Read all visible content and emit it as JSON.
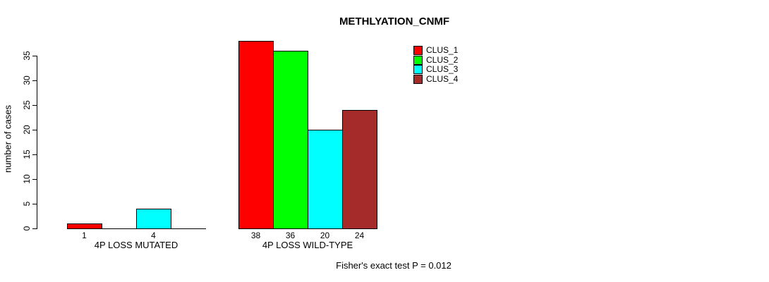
{
  "chart_data": {
    "type": "bar",
    "title": "METHLYATION_CNMF",
    "ylabel": "number of cases",
    "ylim": [
      0,
      35
    ],
    "yticks": [
      0,
      5,
      10,
      15,
      20,
      25,
      30,
      35
    ],
    "grid": false,
    "legend_position": "top-right",
    "series": [
      {
        "name": "CLUS_1",
        "color": "#FF0000"
      },
      {
        "name": "CLUS_2",
        "color": "#00FF00"
      },
      {
        "name": "CLUS_3",
        "color": "#00FFFF"
      },
      {
        "name": "CLUS_4",
        "color": "#A52A2A"
      }
    ],
    "groups": [
      {
        "label": "4P LOSS MUTATED",
        "values": [
          1,
          0,
          4,
          0
        ]
      },
      {
        "label": "4P LOSS WILD-TYPE",
        "values": [
          38,
          36,
          20,
          24
        ]
      }
    ],
    "annotation": "Fisher's exact test P = 0.012"
  },
  "colors": {
    "background": "#FFFFFF",
    "axis": "#000000",
    "text": "#000000"
  }
}
